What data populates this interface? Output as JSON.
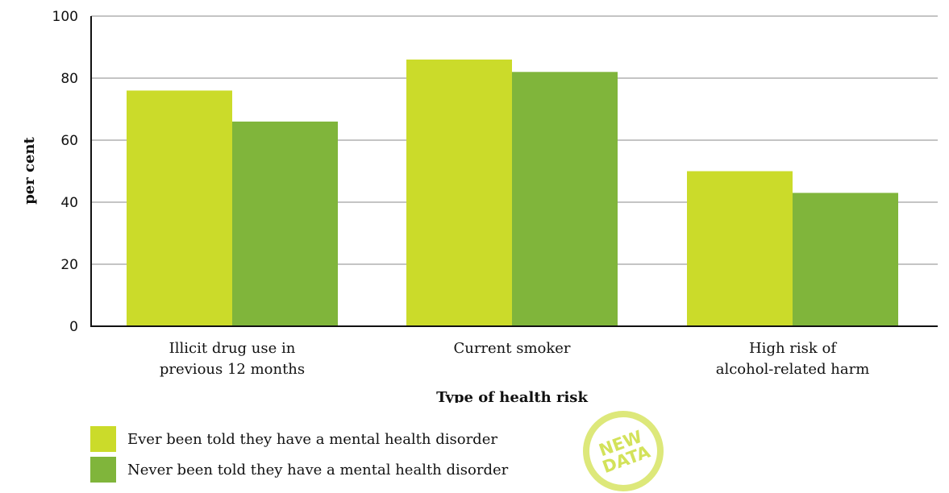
{
  "chart_data": {
    "type": "bar",
    "title": "",
    "xlabel": "Type of health risk",
    "ylabel": "per cent",
    "ylim": [
      0,
      100
    ],
    "yticks": [
      0,
      20,
      40,
      60,
      80,
      100
    ],
    "grid": true,
    "legend_position": "bottom-left",
    "categories": [
      [
        "Illicit drug use in",
        "previous 12 months"
      ],
      [
        "Current smoker"
      ],
      [
        "High risk of",
        "alcohol-related harm"
      ]
    ],
    "series": [
      {
        "name": "Ever been told they have a mental health disorder",
        "color": "#cbdb2a",
        "values": [
          76,
          86,
          50
        ]
      },
      {
        "name": "Never been told they have a mental health disorder",
        "color": "#80b53b",
        "values": [
          66,
          82,
          43
        ]
      }
    ]
  },
  "badge": {
    "line1": "NEW",
    "line2": "DATA",
    "color": "#dde87a"
  }
}
